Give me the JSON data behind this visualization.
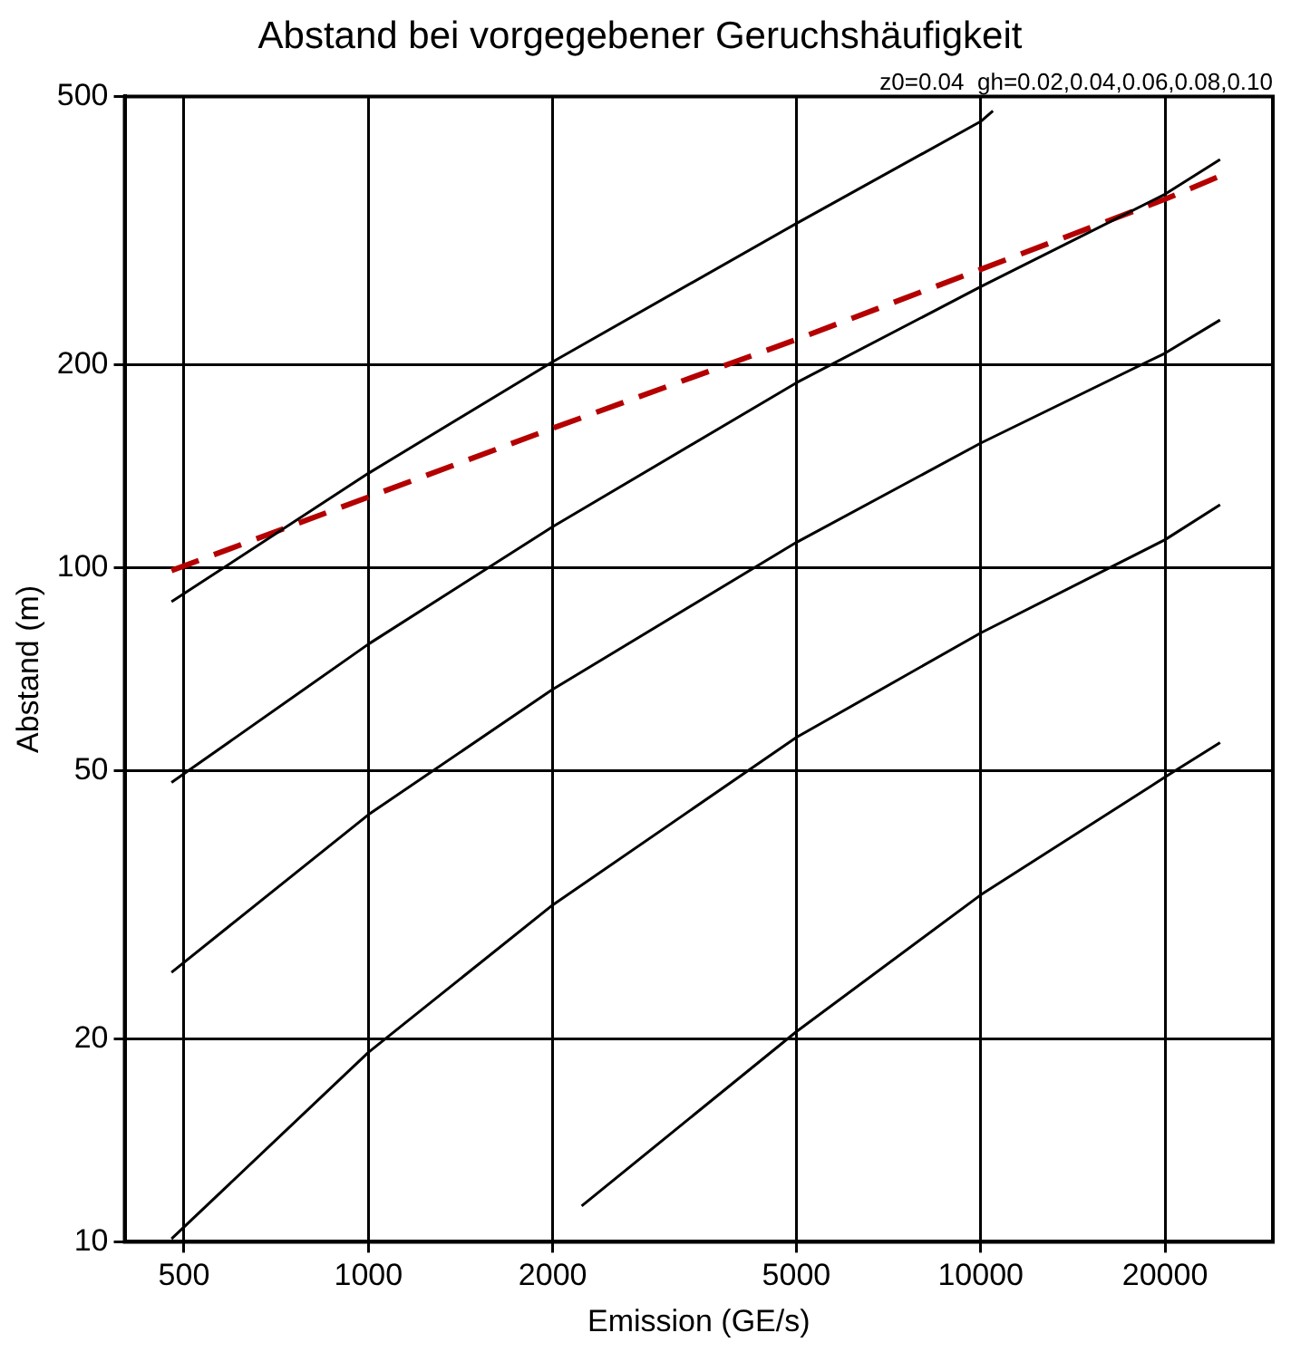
{
  "chart_data": {
    "type": "line",
    "title": "Abstand bei vorgegebener Geruchshäufigkeit",
    "xlabel": "Emission (GE/s)",
    "ylabel": "Abstand (m)",
    "annotations": [
      "z0=0.04  gh=0.02,0.04,0.06,0.08,0.10"
    ],
    "log": "xy",
    "xlim": [
      400,
      30000
    ],
    "ylim": [
      10,
      500
    ],
    "xticks": [
      500,
      1000,
      2000,
      5000,
      10000,
      20000
    ],
    "yticks": [
      10,
      20,
      50,
      100,
      200,
      500
    ],
    "grid": true,
    "legend": false,
    "marker": "none",
    "series": [
      {
        "color": "#000000",
        "line_style": "solid",
        "x": [
          477,
          1000,
          2000,
          5000,
          10000,
          10470
        ],
        "values": [
          89,
          138,
          202,
          324,
          459,
          476
        ]
      },
      {
        "color": "#000000",
        "line_style": "solid",
        "x": [
          477,
          1000,
          2000,
          5000,
          10000,
          20000,
          24600
        ],
        "values": [
          48,
          77,
          115,
          188,
          261,
          358,
          403
        ]
      },
      {
        "color": "#000000",
        "line_style": "solid",
        "x": [
          477,
          1000,
          2000,
          5000,
          10000,
          20000,
          24600
        ],
        "values": [
          25.1,
          43,
          66,
          109,
          153,
          208,
          233
        ]
      },
      {
        "color": "#000000",
        "line_style": "solid",
        "x": [
          477,
          1000,
          2000,
          5000,
          10000,
          20000,
          24600
        ],
        "values": [
          10.1,
          19.1,
          31.6,
          56,
          80,
          110,
          124
        ]
      },
      {
        "color": "#000000",
        "line_style": "solid",
        "x": [
          2230,
          5000,
          10000,
          20000,
          24600
        ],
        "values": [
          11.3,
          20.5,
          32.7,
          48.9,
          55
        ]
      },
      {
        "color": "#b40000",
        "line_style": "dashed",
        "x": [
          477,
          2000,
          5000,
          20000,
          24600
        ],
        "values": [
          99,
          161,
          218,
          352,
          381
        ]
      }
    ]
  }
}
